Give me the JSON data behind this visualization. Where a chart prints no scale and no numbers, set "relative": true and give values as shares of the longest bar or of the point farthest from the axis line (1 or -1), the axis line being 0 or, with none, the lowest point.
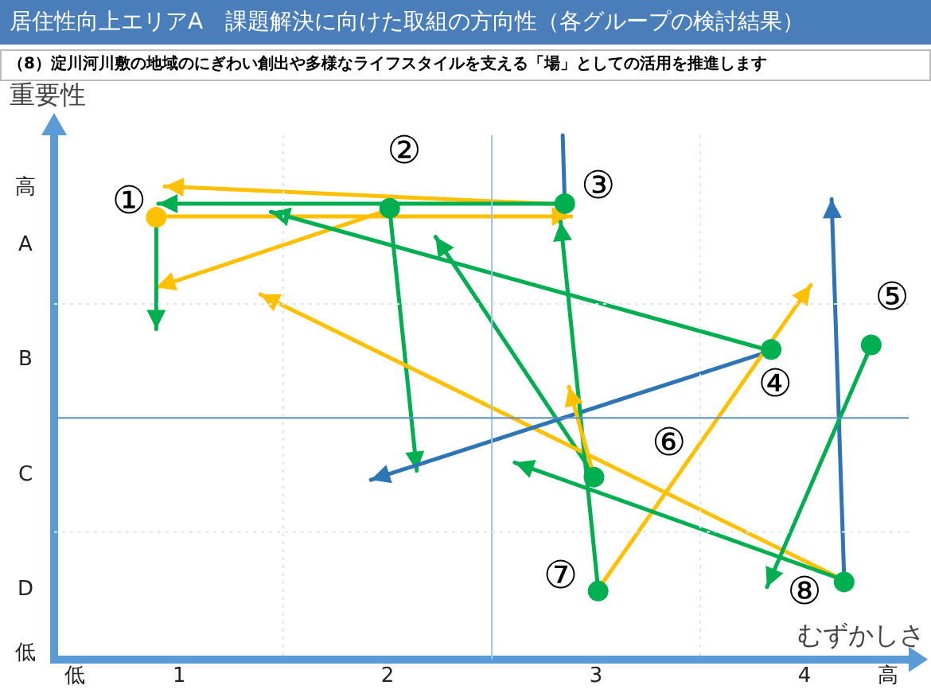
{
  "chart_data": {
    "type": "scatter",
    "title": "居住性向上エリアA　課題解決に向けた取組の方向性（各グループの検討結果）",
    "subtitle": "（8）淀川河川敷の地域のにぎわい創出や多様なライフスタイルを支える「場」としての活用を推進します",
    "xlabel": "むずかしさ",
    "ylabel": "重要性",
    "xlim": [
      0.4,
      4.5
    ],
    "xticks": [
      {
        "value": 0.5,
        "label": "低"
      },
      1,
      2,
      3,
      4,
      {
        "value": 4.4,
        "label": "高"
      }
    ],
    "relative": true,
    "tick_labels": "x",
    "grid": false,
    "legend": false,
    "marker": "circle",
    "ref_lines": [
      {
        "axis": "x",
        "value": 2.5,
        "color": "#9dc3e6",
        "line_style": "solid"
      },
      {
        "axis": "y",
        "value": 0.53,
        "color": "#5b8fc9",
        "line_style": "solid"
      },
      {
        "axis": "x",
        "value": 1.5,
        "color": "#dbe8f6",
        "line_style": "dotted"
      },
      {
        "axis": "x",
        "value": 3.5,
        "color": "#dbe8f6",
        "line_style": "dotted"
      },
      {
        "axis": "y",
        "value": 0.28,
        "color": "#dbe8f6",
        "line_style": "dotted"
      },
      {
        "axis": "y",
        "value": 0.78,
        "color": "#dbe8f6",
        "line_style": "dotted"
      }
    ],
    "x": [
      0.89,
      2.01,
      2.85,
      3.84,
      4.32,
      2.99,
      3.01,
      4.19
    ],
    "values": [
      0.97,
      0.99,
      1,
      0.68,
      0.69,
      0.4,
      0.15,
      0.17
    ],
    "colors": [
      "#ffc000",
      "#00b050",
      "#00b050",
      "#00b050",
      "#00b050",
      "#00b050",
      "#00b050",
      "#00b050"
    ],
    "annotations": [
      "①",
      "②",
      "③",
      "④",
      "⑤",
      "⑥",
      "⑦",
      "⑧",
      "高",
      "A",
      "B",
      "C",
      "D",
      "低"
    ]
  }
}
